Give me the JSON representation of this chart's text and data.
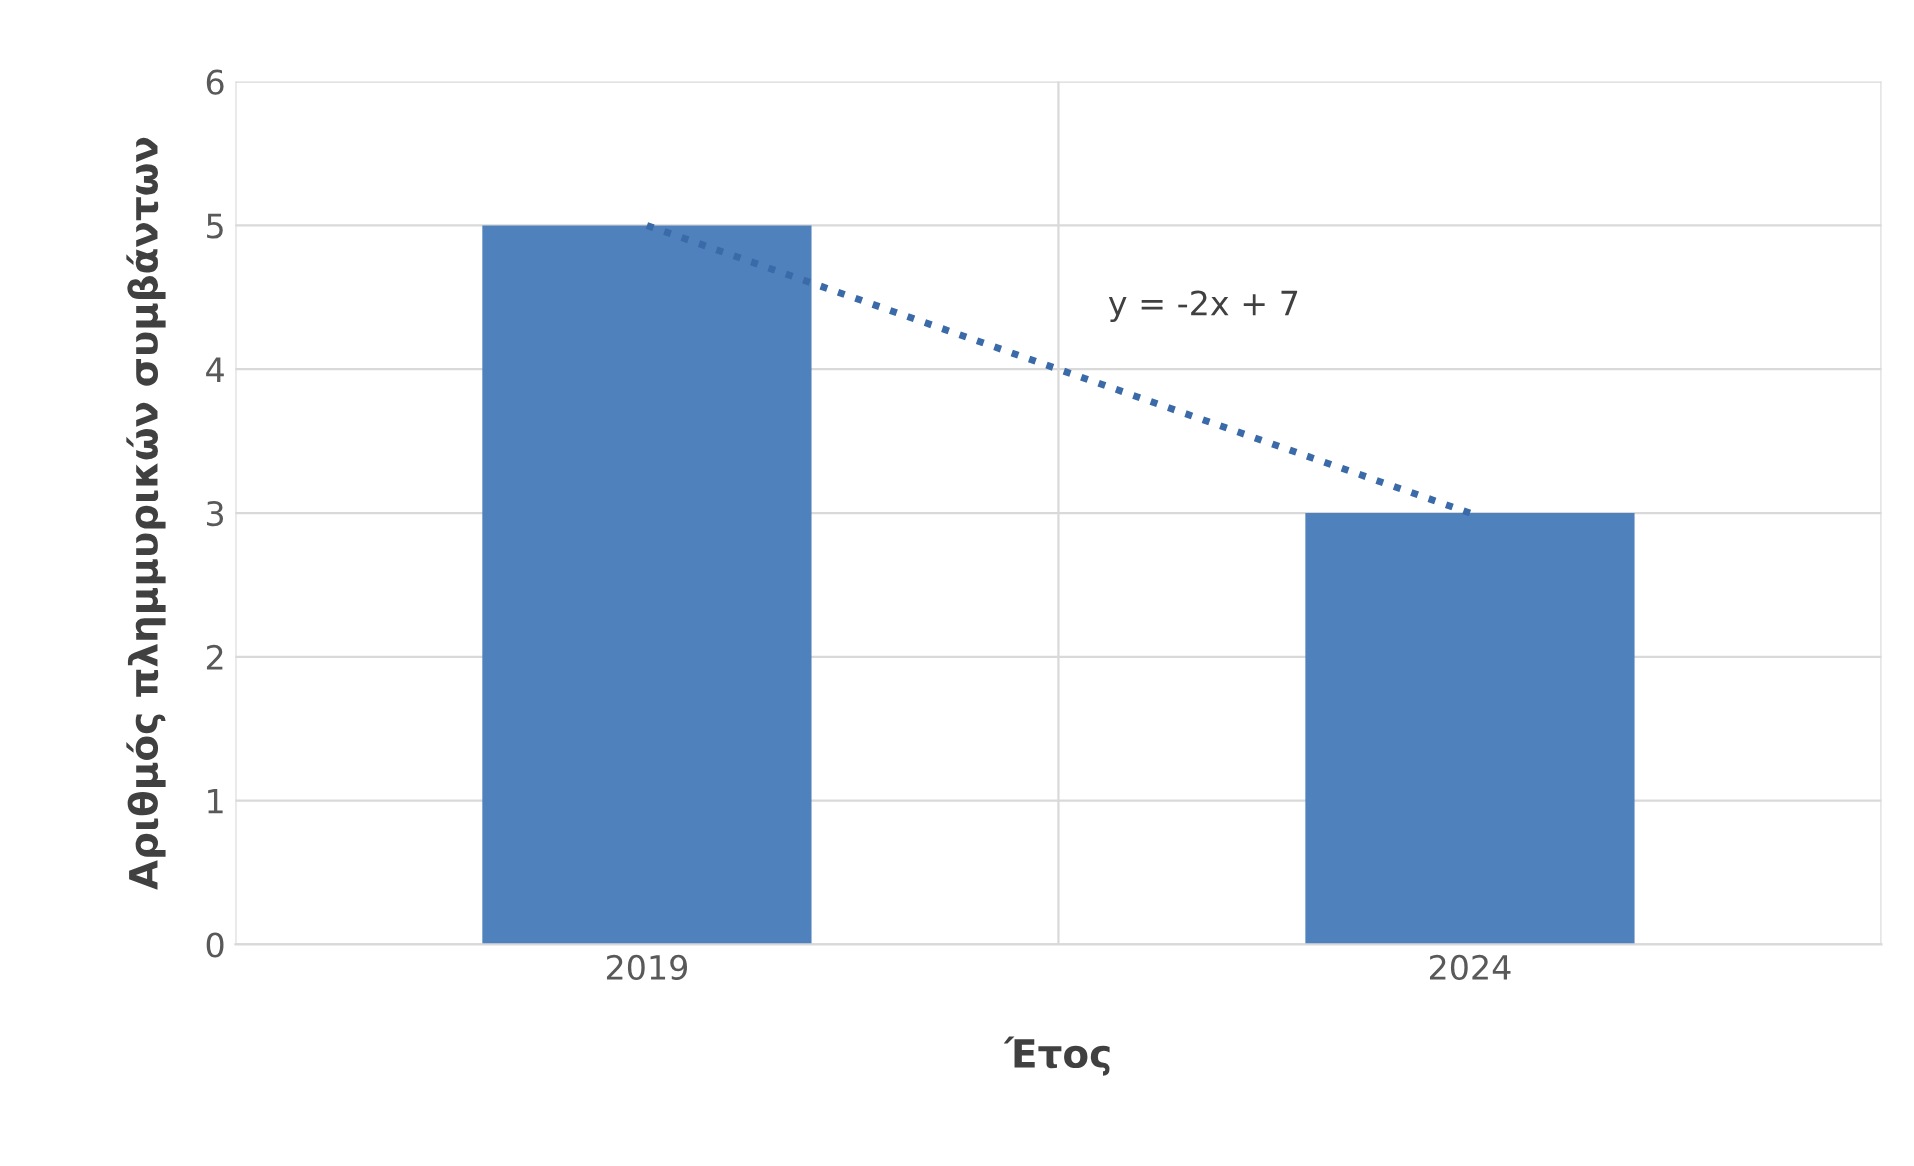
{
  "chart_data": {
    "type": "bar",
    "xlabel": "Έτος",
    "ylabel": "Αριθμός πλημμυρικών συμβάντων",
    "categories": [
      "2019",
      "2024"
    ],
    "series": [
      {
        "color": "#4f81bd",
        "values": [
          5,
          3
        ]
      },
      {
        "type": "line",
        "color": "#3a6aa8",
        "values": [
          5,
          3
        ],
        "line_style": "dotted"
      }
    ],
    "annotations": [
      "y = -2x + 7"
    ],
    "ylim": [
      0,
      6
    ],
    "yticks": [
      0,
      1,
      2,
      3,
      4,
      5,
      6
    ],
    "grid": true,
    "legend": false
  }
}
